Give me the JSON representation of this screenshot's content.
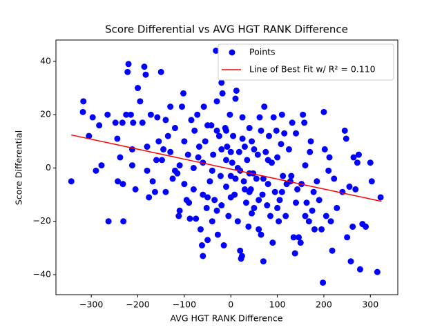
{
  "chart_data": {
    "type": "scatter",
    "title": "Score Differential vs AVG HGT RANK Difference",
    "x_label": "AVG HGT RANK Difference",
    "y_label": "Score Differential",
    "xlim": [
      -376,
      359
    ],
    "ylim": [
      -47.5,
      48
    ],
    "xticks": [
      {
        "value": -300,
        "label": "−300"
      },
      {
        "value": -200,
        "label": "−200"
      },
      {
        "value": -100,
        "label": "−100"
      },
      0,
      100,
      200,
      300
    ],
    "yticks": [
      {
        "value": -40,
        "label": "−40"
      },
      {
        "value": -20,
        "label": "−20"
      },
      0,
      20,
      40
    ],
    "legend": "upper right",
    "series": [
      {
        "name": "Points",
        "type": "scatter",
        "color": "#0000ff",
        "x": [
          -343,
          -317,
          -318,
          -305,
          -297,
          -290,
          -283,
          -278,
          -265,
          -263,
          -248,
          -244,
          -243,
          -238,
          -233,
          -231,
          -232,
          -225,
          -222,
          -220,
          -215,
          -212,
          -212,
          -210,
          -205,
          -200,
          -195,
          -190,
          -186,
          -183,
          -180,
          -176,
          -172,
          -168,
          -163,
          -158,
          -155,
          -150,
          -148,
          -145,
          -140,
          -135,
          -130,
          -125,
          -120,
          -115,
          -112,
          -110,
          -105,
          -102,
          -100,
          -95,
          -92,
          -88,
          -85,
          -80,
          -78,
          -75,
          -72,
          -68,
          -65,
          -62,
          -60,
          -58,
          -55,
          -52,
          -50,
          -45,
          -42,
          -40,
          -38,
          -35,
          -32,
          -30,
          -28,
          -25,
          -22,
          -20,
          -18,
          -15,
          -12,
          -10,
          -8,
          -5,
          -2,
          0,
          3,
          5,
          8,
          10,
          12,
          15,
          18,
          20,
          22,
          24,
          25,
          28,
          30,
          33,
          35,
          38,
          40,
          43,
          45,
          48,
          50,
          55,
          58,
          60,
          62,
          65,
          68,
          70,
          72,
          75,
          78,
          80,
          82,
          85,
          88,
          90,
          92,
          95,
          98,
          100,
          103,
          105,
          108,
          110,
          112,
          115,
          118,
          120,
          125,
          128,
          132,
          135,
          138,
          140,
          143,
          146,
          150,
          152,
          155,
          158,
          160,
          163,
          168,
          170,
          172,
          175,
          178,
          180,
          185,
          190,
          195,
          198,
          200,
          202,
          205,
          210,
          212,
          215,
          218,
          222,
          228,
          240,
          245,
          248,
          250,
          255,
          258,
          262,
          264,
          268,
          272,
          275,
          278,
          283,
          290,
          300,
          303,
          315,
          322,
          -100,
          -130,
          -60,
          -20,
          0,
          20,
          40,
          -80,
          -40,
          60,
          100,
          -160,
          -180,
          -140,
          -110,
          -70,
          -10,
          30,
          70,
          130,
          160,
          -50,
          -30,
          -10,
          10,
          50,
          80,
          110,
          140,
          -90,
          -50,
          -20,
          15,
          45,
          -120,
          -60,
          25,
          65,
          -30,
          0,
          40
        ],
        "values": [
          -5,
          25,
          21,
          12,
          19,
          -1,
          16,
          1,
          20,
          -20,
          17,
          11,
          -5,
          4,
          17,
          -20,
          -6,
          20,
          36,
          39,
          20,
          7,
          1,
          17,
          -8,
          30,
          25,
          17,
          38,
          35,
          -1,
          -11,
          20,
          -5,
          -9,
          19,
          10,
          36,
          3,
          7,
          18,
          12,
          23,
          -4,
          15,
          -2,
          -18,
          -16,
          23,
          28,
          10,
          -12,
          5,
          -19,
          18,
          -8,
          14,
          -19,
          20,
          8,
          -23,
          -29,
          -33,
          23,
          10,
          -15,
          -27,
          -5,
          16,
          -20,
          5,
          -12,
          44,
          25,
          -25,
          12,
          -3,
          32,
          28,
          -29,
          15,
          -7,
          8,
          -18,
          20,
          -3,
          2,
          12,
          -10,
          26,
          29,
          -20,
          6,
          -31,
          -34,
          -33,
          19,
          -5,
          8,
          -13,
          3,
          -22,
          15,
          -8,
          10,
          -2,
          -15,
          -4,
          5,
          -23,
          19,
          -25,
          -10,
          -35,
          23,
          6,
          -14,
          -6,
          12,
          -18,
          2,
          -28,
          19,
          -9,
          14,
          4,
          -20,
          -12,
          9,
          20,
          -3,
          13,
          -18,
          -6,
          7,
          -5,
          17,
          -26,
          -32,
          13,
          -8,
          -26,
          -28,
          -6,
          20,
          17,
          -18,
          -13,
          -20,
          6,
          10,
          -16,
          -9,
          -23,
          -5,
          -12,
          -23,
          -43,
          21,
          7,
          -18,
          -1,
          4,
          -20,
          -31,
          -4,
          -15,
          -9,
          14,
          11,
          -26,
          -7,
          -35,
          -22,
          4,
          -8,
          2,
          5,
          -38,
          -21,
          -22,
          2,
          -5,
          -39,
          -11,
          -6,
          6,
          -10,
          -14,
          -11,
          -1,
          -2,
          0,
          -1,
          -12,
          -15,
          3,
          8,
          -9,
          1,
          4,
          3,
          -8,
          -4,
          -3,
          1,
          16,
          14,
          14,
          -4,
          7,
          3,
          -9,
          -13,
          -13,
          -11,
          7,
          0,
          -17,
          -1,
          2,
          11,
          14,
          -16,
          6,
          -9
        ]
      },
      {
        "name": "Line of Best Fit w/ R² = 0.110",
        "type": "line",
        "color": "#ff0000",
        "x": [
          -343,
          324
        ],
        "values": [
          12.4,
          -12.5
        ]
      }
    ]
  }
}
